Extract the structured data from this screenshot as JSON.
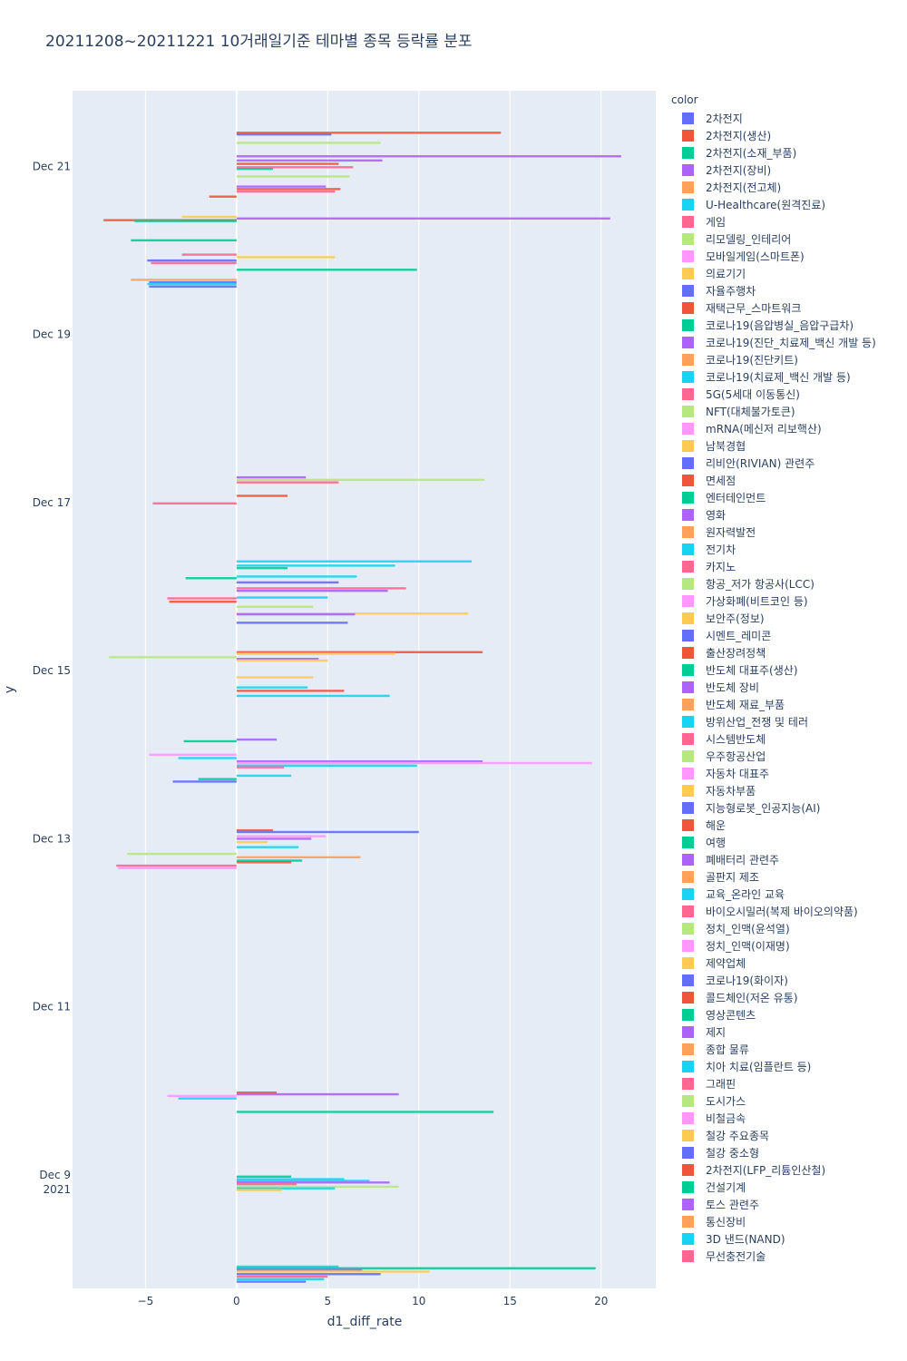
{
  "chart_data": {
    "type": "bar",
    "orientation": "horizontal",
    "title": "20211208~20211221 10거래일기준 테마별 종목 등락률 분포",
    "xlabel": "d1_diff_rate",
    "ylabel": "y",
    "xlim": [
      -9,
      23
    ],
    "x_ticks": [
      {
        "value": -5,
        "label": "−5"
      },
      {
        "value": 0,
        "label": "0"
      },
      {
        "value": 5,
        "label": "5"
      },
      {
        "value": 10,
        "label": "10"
      },
      {
        "value": 15,
        "label": "15"
      },
      {
        "value": 20,
        "label": "20"
      }
    ],
    "y_range_days": [
      7.65,
      21.9
    ],
    "y_ticks": [
      {
        "day": 9,
        "label": "Dec 9",
        "sublabel": "2021"
      },
      {
        "day": 11,
        "label": "Dec 11"
      },
      {
        "day": 13,
        "label": "Dec 13"
      },
      {
        "day": 15,
        "label": "Dec 15"
      },
      {
        "day": 17,
        "label": "Dec 17"
      },
      {
        "day": 19,
        "label": "Dec 19"
      },
      {
        "day": 21,
        "label": "Dec 21"
      }
    ],
    "legend_title": "color",
    "legend": [
      {
        "name": "2차전지",
        "color": "#636efa"
      },
      {
        "name": "2차전지(생산)",
        "color": "#EF553B"
      },
      {
        "name": "2차전지(소재_부품)",
        "color": "#00cc96"
      },
      {
        "name": "2차전지(장비)",
        "color": "#ab63fa"
      },
      {
        "name": "2차전지(전고체)",
        "color": "#FFA15A"
      },
      {
        "name": "U-Healthcare(원격진료)",
        "color": "#19d3f3"
      },
      {
        "name": "게임",
        "color": "#FF6692"
      },
      {
        "name": "리모델링_인테리어",
        "color": "#B6E880"
      },
      {
        "name": "모바일게임(스마트폰)",
        "color": "#FF97FF"
      },
      {
        "name": "의료기기",
        "color": "#FECB52"
      },
      {
        "name": "자율주행차",
        "color": "#636efa"
      },
      {
        "name": "재택근무_스마트워크",
        "color": "#EF553B"
      },
      {
        "name": "코로나19(음압병실_음압구급차)",
        "color": "#00cc96"
      },
      {
        "name": "코로나19(진단_치료제_백신 개발 등)",
        "color": "#ab63fa"
      },
      {
        "name": "코로나19(진단키트)",
        "color": "#FFA15A"
      },
      {
        "name": "코로나19(치료제_백신 개발 등)",
        "color": "#19d3f3"
      },
      {
        "name": "5G(5세대 이동통신)",
        "color": "#FF6692"
      },
      {
        "name": "NFT(대체불가토큰)",
        "color": "#B6E880"
      },
      {
        "name": "mRNA(메신저 리보핵산)",
        "color": "#FF97FF"
      },
      {
        "name": "남북경협",
        "color": "#FECB52"
      },
      {
        "name": "리비안(RIVIAN) 관련주",
        "color": "#636efa"
      },
      {
        "name": "면세점",
        "color": "#EF553B"
      },
      {
        "name": "엔터테인먼트",
        "color": "#00cc96"
      },
      {
        "name": "영화",
        "color": "#ab63fa"
      },
      {
        "name": "원자력발전",
        "color": "#FFA15A"
      },
      {
        "name": "전기차",
        "color": "#19d3f3"
      },
      {
        "name": "카지노",
        "color": "#FF6692"
      },
      {
        "name": "항공_저가 항공사(LCC)",
        "color": "#B6E880"
      },
      {
        "name": "가상화폐(비트코인 등)",
        "color": "#FF97FF"
      },
      {
        "name": "보안주(정보)",
        "color": "#FECB52"
      },
      {
        "name": "시멘트_레미콘",
        "color": "#636efa"
      },
      {
        "name": "출산장려정책",
        "color": "#EF553B"
      },
      {
        "name": "반도체 대표주(생산)",
        "color": "#00cc96"
      },
      {
        "name": "반도체 장비",
        "color": "#ab63fa"
      },
      {
        "name": "반도체 재료_부품",
        "color": "#FFA15A"
      },
      {
        "name": "방위산업_전쟁 및 테러",
        "color": "#19d3f3"
      },
      {
        "name": "시스템반도체",
        "color": "#FF6692"
      },
      {
        "name": "우주항공산업",
        "color": "#B6E880"
      },
      {
        "name": "자동차 대표주",
        "color": "#FF97FF"
      },
      {
        "name": "자동차부품",
        "color": "#FECB52"
      },
      {
        "name": "지능형로봇_인공지능(AI)",
        "color": "#636efa"
      },
      {
        "name": "해운",
        "color": "#EF553B"
      },
      {
        "name": "여행",
        "color": "#00cc96"
      },
      {
        "name": "폐배터리 관련주",
        "color": "#ab63fa"
      },
      {
        "name": "골판지 제조",
        "color": "#FFA15A"
      },
      {
        "name": "교육_온라인 교육",
        "color": "#19d3f3"
      },
      {
        "name": "바이오시밀러(복제 바이오의약품)",
        "color": "#FF6692"
      },
      {
        "name": "정치_인맥(윤석열)",
        "color": "#B6E880"
      },
      {
        "name": "정치_인맥(이재명)",
        "color": "#FF97FF"
      },
      {
        "name": "제약업체",
        "color": "#FECB52"
      },
      {
        "name": "코로나19(화이자)",
        "color": "#636efa"
      },
      {
        "name": "콜드체인(저온 유통)",
        "color": "#EF553B"
      },
      {
        "name": "영상콘텐츠",
        "color": "#00cc96"
      },
      {
        "name": "제지",
        "color": "#ab63fa"
      },
      {
        "name": "종합 물류",
        "color": "#FFA15A"
      },
      {
        "name": "치아 치료(임플란트 등)",
        "color": "#19d3f3"
      },
      {
        "name": "그래핀",
        "color": "#FF6692"
      },
      {
        "name": "도시가스",
        "color": "#B6E880"
      },
      {
        "name": "비철금속",
        "color": "#FF97FF"
      },
      {
        "name": "철강 주요종목",
        "color": "#FECB52"
      },
      {
        "name": "철강 중소형",
        "color": "#636efa"
      },
      {
        "name": "2차전지(LFP_리튬인산철)",
        "color": "#EF553B"
      },
      {
        "name": "건설기계",
        "color": "#00cc96"
      },
      {
        "name": "토스 관련주",
        "color": "#ab63fa"
      },
      {
        "name": "통신장비",
        "color": "#FFA15A"
      },
      {
        "name": "3D 낸드(NAND)",
        "color": "#19d3f3"
      },
      {
        "name": "무선충전기술",
        "color": "#FF6692"
      }
    ],
    "series": [
      {
        "day": 21.4,
        "value": 14.5,
        "c": 1
      },
      {
        "day": 21.38,
        "value": 5.2,
        "c": 0
      },
      {
        "day": 21.28,
        "value": 7.9,
        "c": 7
      },
      {
        "day": 21.12,
        "value": 21.1,
        "c": 3
      },
      {
        "day": 21.07,
        "value": 8.0,
        "c": 3
      },
      {
        "day": 21.03,
        "value": 5.6,
        "c": 1
      },
      {
        "day": 20.99,
        "value": 6.4,
        "c": 6
      },
      {
        "day": 20.97,
        "value": 2.0,
        "c": 2
      },
      {
        "day": 20.88,
        "value": 6.2,
        "c": 7
      },
      {
        "day": 20.76,
        "value": 4.9,
        "c": 3
      },
      {
        "day": 20.73,
        "value": 5.7,
        "c": 1
      },
      {
        "day": 20.7,
        "value": 5.4,
        "c": 6
      },
      {
        "day": 20.64,
        "value": -1.5,
        "c": 1
      },
      {
        "day": 20.38,
        "value": 20.5,
        "c": 3
      },
      {
        "day": 20.36,
        "value": -7.3,
        "c": 1
      },
      {
        "day": 20.35,
        "value": -5.6,
        "c": 2
      },
      {
        "day": 20.4,
        "value": -3.0,
        "c": 9
      },
      {
        "day": 20.12,
        "value": -5.8,
        "c": 2
      },
      {
        "day": 19.95,
        "value": -3.0,
        "c": 6
      },
      {
        "day": 19.92,
        "value": 5.4,
        "c": 9
      },
      {
        "day": 19.88,
        "value": -4.9,
        "c": 0
      },
      {
        "day": 19.85,
        "value": -4.7,
        "c": 6
      },
      {
        "day": 19.77,
        "value": 9.9,
        "c": 2
      },
      {
        "day": 19.65,
        "value": -5.8,
        "c": 4
      },
      {
        "day": 19.62,
        "value": -4.8,
        "c": 0
      },
      {
        "day": 19.6,
        "value": -4.9,
        "c": 5
      },
      {
        "day": 19.57,
        "value": -4.8,
        "c": 0
      },
      {
        "day": 17.3,
        "value": 3.8,
        "c": 3
      },
      {
        "day": 17.27,
        "value": 13.6,
        "c": 7
      },
      {
        "day": 17.24,
        "value": 5.6,
        "c": 6
      },
      {
        "day": 17.08,
        "value": 2.8,
        "c": 1
      },
      {
        "day": 16.99,
        "value": -4.6,
        "c": 6
      },
      {
        "day": 16.3,
        "value": 12.9,
        "c": 5
      },
      {
        "day": 16.25,
        "value": 8.7,
        "c": 5
      },
      {
        "day": 16.22,
        "value": 2.8,
        "c": 2
      },
      {
        "day": 16.12,
        "value": 6.6,
        "c": 5
      },
      {
        "day": 16.1,
        "value": -2.8,
        "c": 2
      },
      {
        "day": 16.05,
        "value": 5.6,
        "c": 0
      },
      {
        "day": 15.98,
        "value": 9.3,
        "c": 6
      },
      {
        "day": 15.95,
        "value": 8.3,
        "c": 3
      },
      {
        "day": 15.87,
        "value": 5.0,
        "c": 5
      },
      {
        "day": 15.86,
        "value": -3.8,
        "c": 6
      },
      {
        "day": 15.82,
        "value": -3.7,
        "c": 1
      },
      {
        "day": 15.76,
        "value": 4.2,
        "c": 7
      },
      {
        "day": 15.68,
        "value": 12.7,
        "c": 9
      },
      {
        "day": 15.67,
        "value": 6.5,
        "c": 3
      },
      {
        "day": 15.57,
        "value": 6.1,
        "c": 0
      },
      {
        "day": 15.22,
        "value": 13.5,
        "c": 1
      },
      {
        "day": 15.2,
        "value": 8.7,
        "c": 9
      },
      {
        "day": 15.16,
        "value": -7.0,
        "c": 7
      },
      {
        "day": 15.14,
        "value": 4.5,
        "c": 3
      },
      {
        "day": 15.12,
        "value": 5.0,
        "c": 9
      },
      {
        "day": 14.92,
        "value": 4.2,
        "c": 9
      },
      {
        "day": 14.8,
        "value": 3.9,
        "c": 5
      },
      {
        "day": 14.76,
        "value": 5.9,
        "c": 1
      },
      {
        "day": 14.7,
        "value": 8.4,
        "c": 5
      },
      {
        "day": 14.18,
        "value": 2.2,
        "c": 3
      },
      {
        "day": 14.16,
        "value": -2.9,
        "c": 2
      },
      {
        "day": 14.0,
        "value": -4.8,
        "c": 8
      },
      {
        "day": 13.96,
        "value": -3.2,
        "c": 5
      },
      {
        "day": 13.92,
        "value": 13.5,
        "c": 3
      },
      {
        "day": 13.9,
        "value": 19.5,
        "c": 8
      },
      {
        "day": 13.87,
        "value": 9.9,
        "c": 5
      },
      {
        "day": 13.85,
        "value": 2.6,
        "c": 6
      },
      {
        "day": 13.75,
        "value": 3.0,
        "c": 5
      },
      {
        "day": 13.71,
        "value": -2.1,
        "c": 2
      },
      {
        "day": 13.68,
        "value": -3.5,
        "c": 0
      },
      {
        "day": 13.1,
        "value": 2.0,
        "c": 1
      },
      {
        "day": 13.08,
        "value": 10.0,
        "c": 0
      },
      {
        "day": 13.03,
        "value": 4.9,
        "c": 8
      },
      {
        "day": 13.0,
        "value": 4.1,
        "c": 3
      },
      {
        "day": 12.96,
        "value": 1.7,
        "c": 9
      },
      {
        "day": 12.9,
        "value": 3.4,
        "c": 5
      },
      {
        "day": 12.82,
        "value": -6.0,
        "c": 7
      },
      {
        "day": 12.78,
        "value": 6.8,
        "c": 4
      },
      {
        "day": 12.74,
        "value": 3.6,
        "c": 2
      },
      {
        "day": 12.72,
        "value": 3.0,
        "c": 1
      },
      {
        "day": 12.68,
        "value": -6.6,
        "c": 6
      },
      {
        "day": 12.65,
        "value": -6.5,
        "c": 8
      },
      {
        "day": 9.98,
        "value": 2.2,
        "c": 1
      },
      {
        "day": 9.96,
        "value": 8.9,
        "c": 3
      },
      {
        "day": 9.94,
        "value": -3.8,
        "c": 8
      },
      {
        "day": 9.91,
        "value": -3.2,
        "c": 5
      },
      {
        "day": 9.75,
        "value": 14.1,
        "c": 2
      },
      {
        "day": 8.98,
        "value": 3.0,
        "c": 2
      },
      {
        "day": 8.95,
        "value": 5.9,
        "c": 5
      },
      {
        "day": 8.93,
        "value": 7.3,
        "c": 5
      },
      {
        "day": 8.91,
        "value": 8.4,
        "c": 3
      },
      {
        "day": 8.89,
        "value": 3.3,
        "c": 6
      },
      {
        "day": 8.86,
        "value": 8.9,
        "c": 7
      },
      {
        "day": 8.84,
        "value": 5.4,
        "c": 5
      },
      {
        "day": 8.82,
        "value": 2.5,
        "c": 9
      },
      {
        "day": 7.91,
        "value": 5.6,
        "c": 5
      },
      {
        "day": 7.89,
        "value": 19.7,
        "c": 2
      },
      {
        "day": 7.87,
        "value": 6.9,
        "c": 3
      },
      {
        "day": 7.85,
        "value": 10.6,
        "c": 9
      },
      {
        "day": 7.82,
        "value": 7.9,
        "c": 0
      },
      {
        "day": 7.79,
        "value": 5.0,
        "c": 6
      },
      {
        "day": 7.76,
        "value": 4.8,
        "c": 5
      },
      {
        "day": 7.73,
        "value": 3.8,
        "c": 0
      }
    ]
  }
}
